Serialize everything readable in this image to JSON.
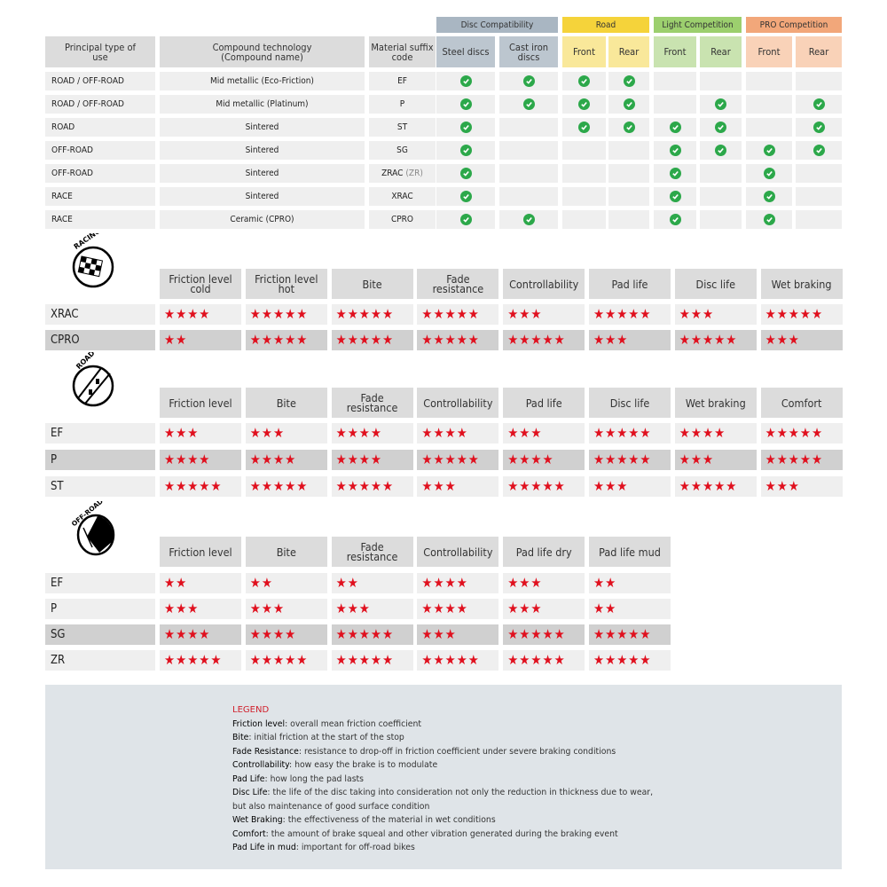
{
  "compat_table": {
    "groups": [
      {
        "label": "Disc Compatibility",
        "color": "#a9b6c2",
        "sub_color": "#bcc6cf"
      },
      {
        "label": "Road",
        "color": "#f5d33a",
        "sub_color": "#f9e89a"
      },
      {
        "label": "Light Competition",
        "color": "#9ccf6e",
        "sub_color": "#c9e3b0"
      },
      {
        "label": "PRO Competition",
        "color": "#f2a77a",
        "sub_color": "#f9d2b8"
      }
    ],
    "headers": {
      "use": "Principal type of use",
      "compound": "Compound technology (Compound name)",
      "suffix": "Material suffix code",
      "steel": "Steel discs",
      "cast_iron": "Cast iron discs",
      "road_front": "Front",
      "road_rear": "Rear",
      "light_front": "Front",
      "light_rear": "Rear",
      "pro_front": "Front",
      "pro_rear": "Rear"
    },
    "check_color": "#2ca84a",
    "rows": [
      {
        "use": "ROAD / OFF-ROAD",
        "compound": "Mid metallic (Eco-Friction)",
        "suffix": "EF",
        "suffix_alt": "",
        "checks": [
          true,
          true,
          true,
          true,
          false,
          false,
          false,
          false
        ]
      },
      {
        "use": "ROAD / OFF-ROAD",
        "compound": "Mid metallic (Platinum)",
        "suffix": "P",
        "suffix_alt": "",
        "checks": [
          true,
          true,
          true,
          true,
          false,
          true,
          false,
          true
        ]
      },
      {
        "use": "ROAD",
        "compound": "Sintered",
        "suffix": "ST",
        "suffix_alt": "",
        "checks": [
          true,
          false,
          true,
          true,
          true,
          true,
          false,
          true
        ]
      },
      {
        "use": "OFF-ROAD",
        "compound": "Sintered",
        "suffix": "SG",
        "suffix_alt": "",
        "checks": [
          true,
          false,
          false,
          false,
          true,
          true,
          true,
          true
        ]
      },
      {
        "use": "OFF-ROAD",
        "compound": "Sintered",
        "suffix": "ZRAC",
        "suffix_alt": "(ZR)",
        "checks": [
          true,
          false,
          false,
          false,
          true,
          false,
          true,
          false
        ]
      },
      {
        "use": "RACE",
        "compound": "Sintered",
        "suffix": "XRAC",
        "suffix_alt": "",
        "checks": [
          true,
          false,
          false,
          false,
          true,
          false,
          true,
          false
        ]
      },
      {
        "use": "RACE",
        "compound": "Ceramic (CPRO)",
        "suffix": "CPRO",
        "suffix_alt": "",
        "checks": [
          true,
          true,
          false,
          false,
          true,
          false,
          true,
          false
        ]
      }
    ]
  },
  "rating_tables": [
    {
      "icon": "racing-flag-icon",
      "icon_label": "RACING",
      "columns": [
        "Friction level cold",
        "Friction level hot",
        "Bite",
        "Fade resistance",
        "Controllability",
        "Pad life",
        "Disc life",
        "Wet braking"
      ],
      "rows": [
        {
          "code": "XRAC",
          "stars": [
            4,
            5,
            5,
            5,
            3,
            5,
            3,
            5
          ]
        },
        {
          "code": "CPRO",
          "stars": [
            2,
            5,
            5,
            5,
            5,
            3,
            5,
            3
          ]
        }
      ]
    },
    {
      "icon": "road-icon",
      "icon_label": "ROAD",
      "columns": [
        "Friction level",
        "Bite",
        "Fade resistance",
        "Controllability",
        "Pad life",
        "Disc life",
        "Wet braking",
        "Comfort"
      ],
      "rows": [
        {
          "code": "EF",
          "stars": [
            3,
            3,
            4,
            4,
            3,
            5,
            4,
            5
          ]
        },
        {
          "code": "P",
          "stars": [
            4,
            4,
            4,
            5,
            4,
            5,
            3,
            5
          ]
        },
        {
          "code": "ST",
          "stars": [
            5,
            5,
            5,
            3,
            5,
            3,
            5,
            3
          ]
        }
      ]
    },
    {
      "icon": "off-road-icon",
      "icon_label": "OFF-ROAD",
      "columns": [
        "Friction level",
        "Bite",
        "Fade resistance",
        "Controllability",
        "Pad life dry",
        "Pad life mud"
      ],
      "rows": [
        {
          "code": "EF",
          "stars": [
            2,
            2,
            2,
            4,
            3,
            2
          ]
        },
        {
          "code": "P",
          "stars": [
            3,
            3,
            3,
            4,
            3,
            2
          ]
        },
        {
          "code": "SG",
          "stars": [
            4,
            4,
            5,
            3,
            5,
            5
          ]
        },
        {
          "code": "ZR",
          "stars": [
            5,
            5,
            5,
            5,
            5,
            5
          ]
        }
      ]
    }
  ],
  "star_color": "#e0101e",
  "legend": {
    "title": "LEGEND",
    "items": [
      {
        "term": "Friction level",
        "desc": ": overall mean friction coefficient"
      },
      {
        "term": "Bite",
        "desc": ": initial friction at the start of the stop"
      },
      {
        "term": "Fade Resistance",
        "desc": ": resistance to drop-off in friction coefficient under severe braking conditions"
      },
      {
        "term": "Controllability",
        "desc": ": how easy the brake is to modulate"
      },
      {
        "term": "Pad Life",
        "desc": ": how long the pad lasts"
      },
      {
        "term": "Disc Life",
        "desc": ": the life of the disc taking into consideration not only the reduction in thickness due to wear, but also maintenance of good surface condition"
      },
      {
        "term": "Wet Braking",
        "desc": ": the effectiveness of the material in wet conditions"
      },
      {
        "term": "Comfort",
        "desc": ": the amount of brake squeal and other vibration generated during the braking event"
      },
      {
        "term": "Pad Life in mud",
        "desc": ": important for off-road bikes"
      }
    ]
  }
}
